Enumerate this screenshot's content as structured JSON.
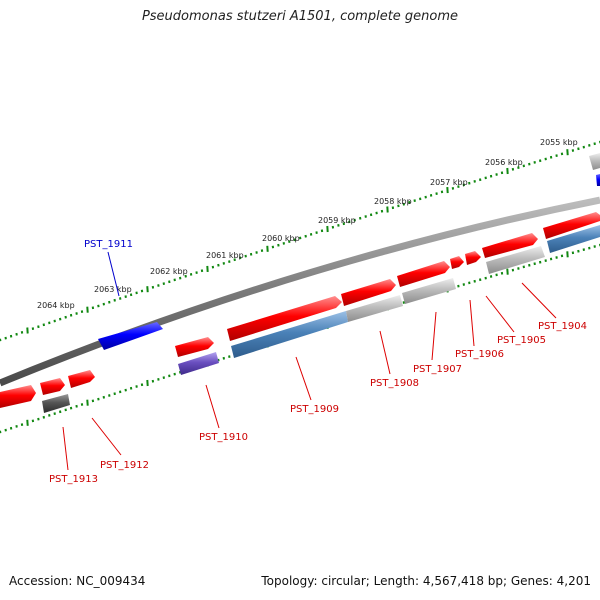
{
  "title": "Pseudomonas stutzeri A1501, complete genome",
  "footer": {
    "accession": "Accession: NC_009434",
    "summary": "Topology: circular; Length: 4,567,418 bp; Genes: 4,201"
  },
  "colors": {
    "backbone": "#777777",
    "forward_gene": "#ee0000",
    "reverse_gene": "#ee0000",
    "forward_label": "#cc0000",
    "reverse_label": "#cc0000",
    "blue_gene": "#0000dd",
    "blue_label": "#0000cc",
    "steelblue_gene": "#4b82b8",
    "grey_gene": "#b8b8b8",
    "darkgrey_gene": "#555555",
    "purple_gene": "#6a4fc0",
    "tick": "#118811"
  },
  "scale": {
    "labels": [
      "2055 kbp",
      "2056 kbp",
      "2057 kbp",
      "2058 kbp",
      "2059 kbp",
      "2060 kbp",
      "2061 kbp",
      "2062 kbp",
      "2063 kbp",
      "2064 kbp"
    ]
  },
  "genes": [
    {
      "label": "PST_1904",
      "strand": "plus",
      "color_key": "forward_gene"
    },
    {
      "label": "PST_1905",
      "strand": "plus",
      "color_key": "forward_gene"
    },
    {
      "label": "PST_1906",
      "strand": "plus",
      "color_key": "forward_gene"
    },
    {
      "label": "PST_1907",
      "strand": "plus",
      "color_key": "forward_gene"
    },
    {
      "label": "PST_1908",
      "strand": "plus",
      "color_key": "forward_gene"
    },
    {
      "label": "PST_1909",
      "strand": "plus",
      "color_key": "forward_gene"
    },
    {
      "label": "PST_1910",
      "strand": "plus",
      "color_key": "forward_gene"
    },
    {
      "label": "PST_1911",
      "strand": "plus",
      "color_key": "blue_gene"
    },
    {
      "label": "PST_1912",
      "strand": "plus",
      "color_key": "forward_gene"
    },
    {
      "label": "PST_1913",
      "strand": "plus",
      "color_key": "forward_gene"
    }
  ]
}
